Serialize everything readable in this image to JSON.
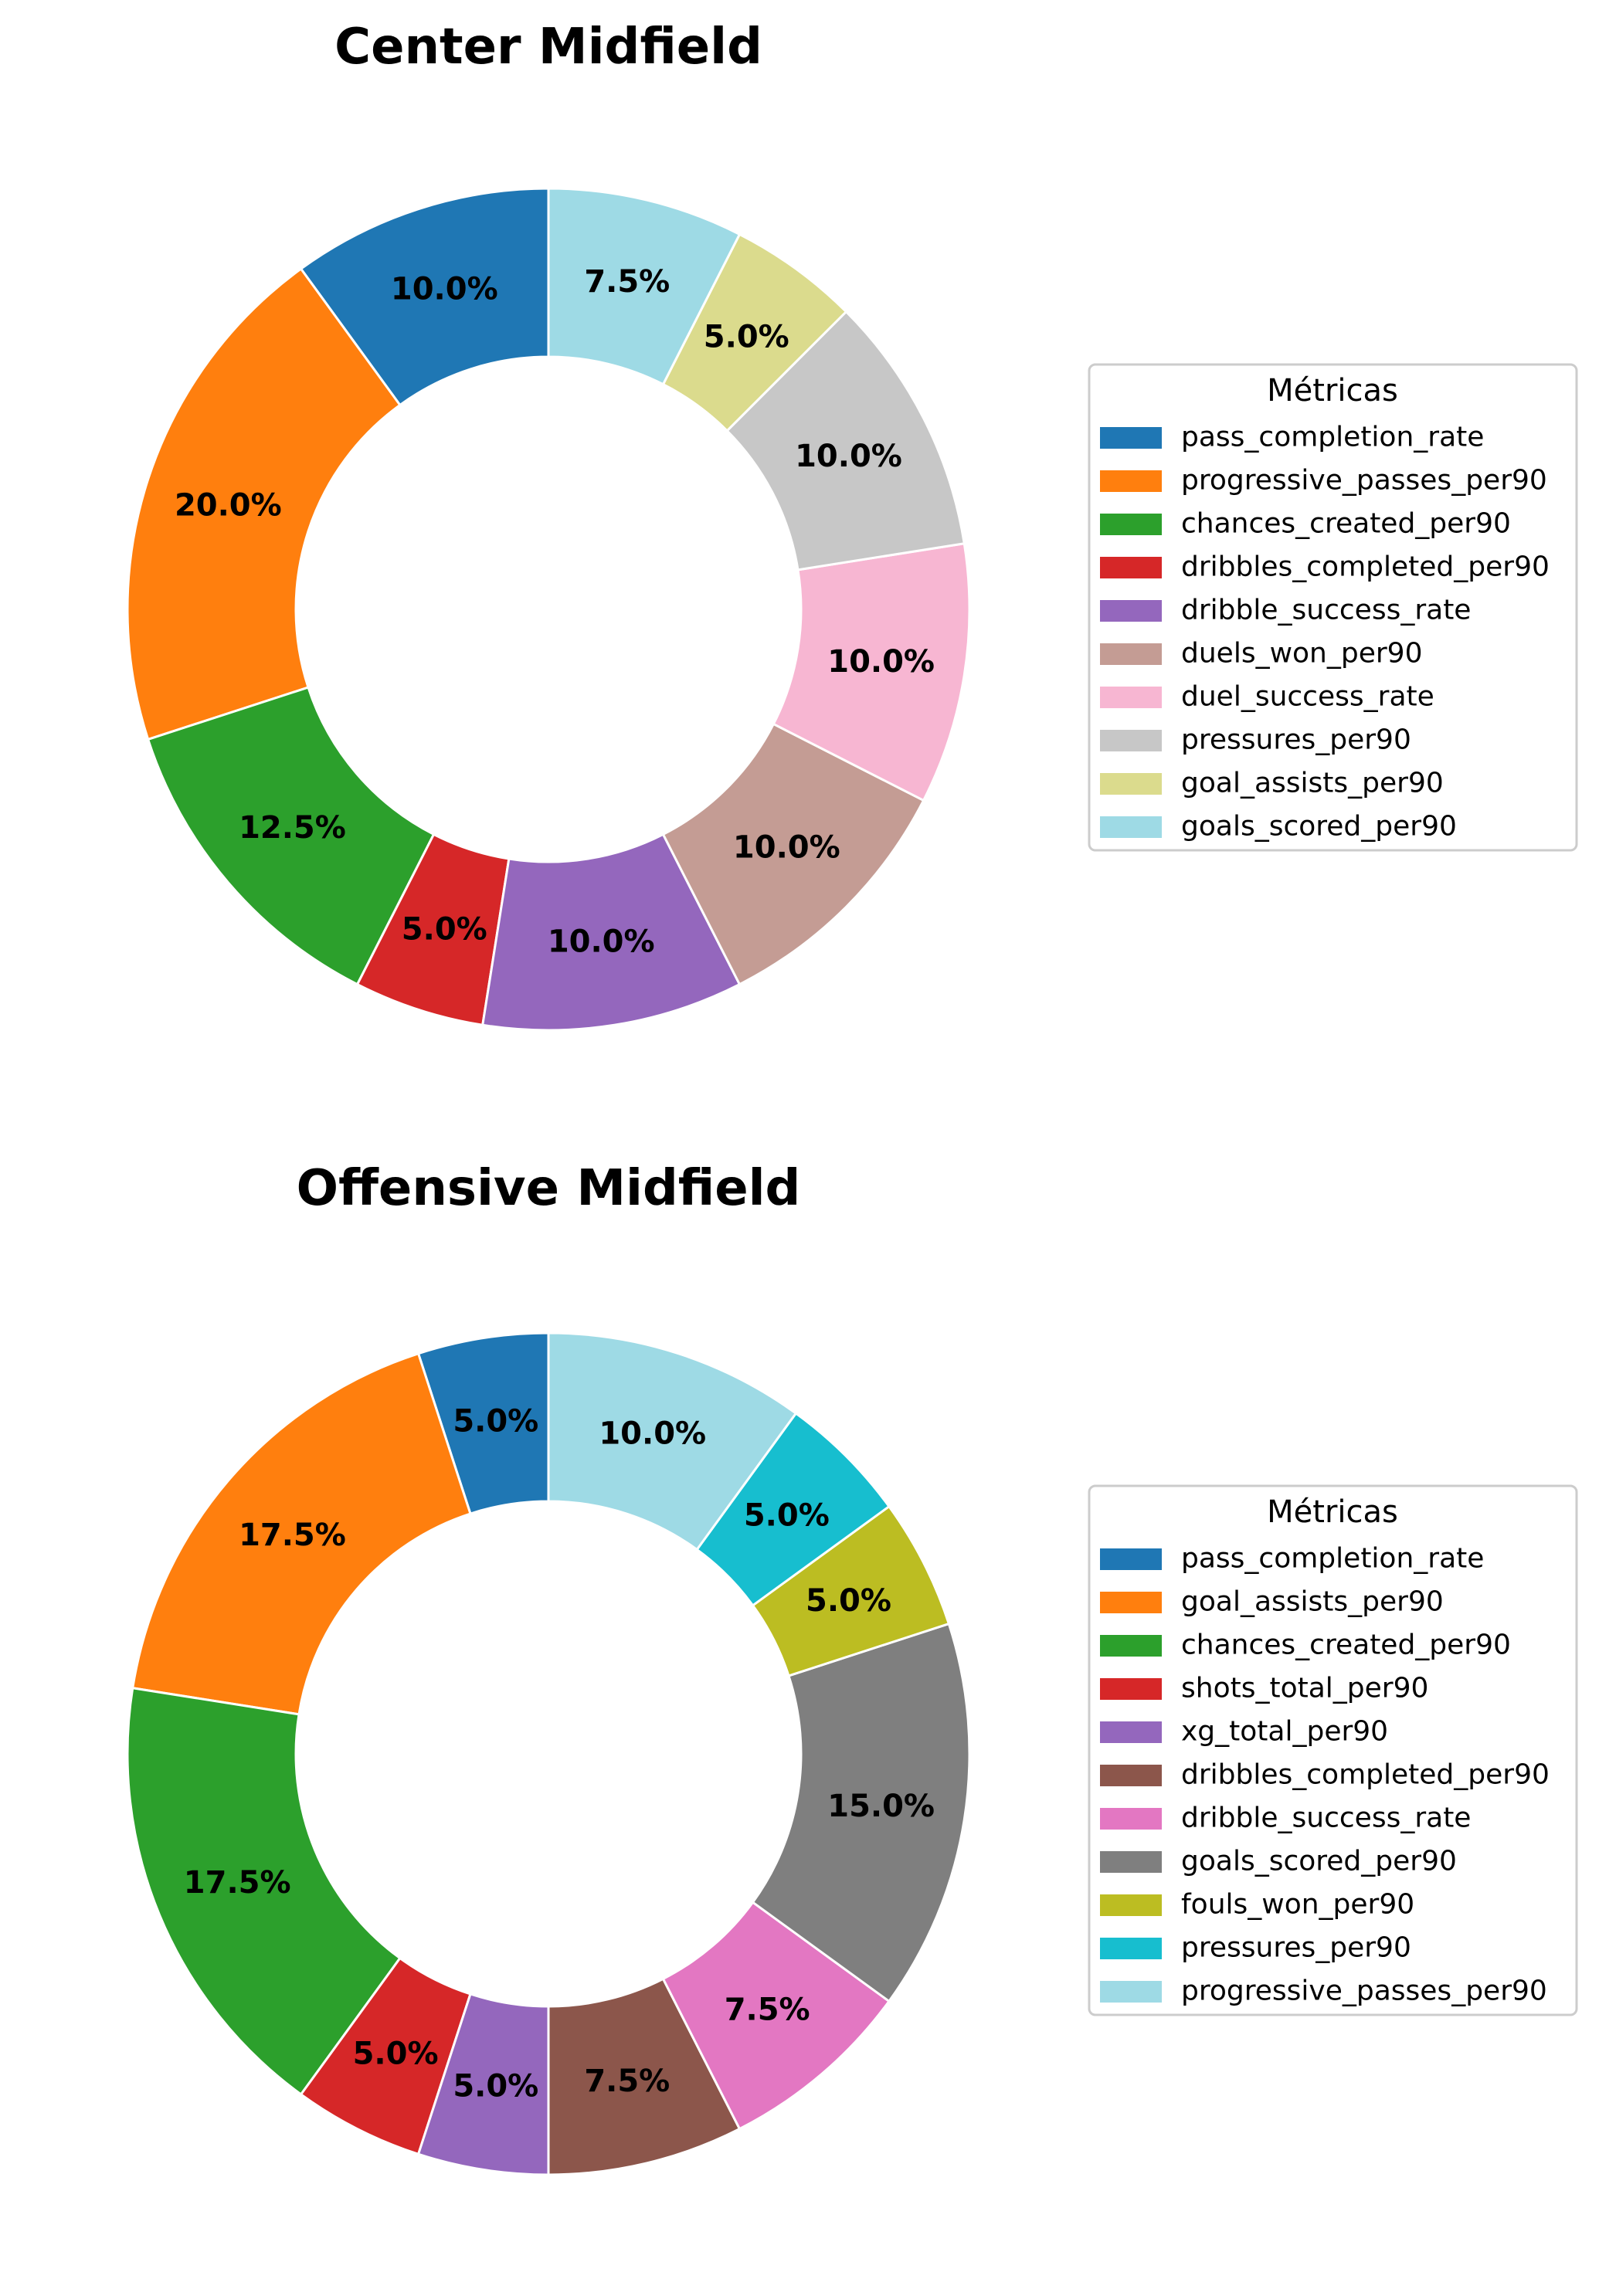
{
  "chart_data": [
    {
      "type": "pie",
      "title": "Center Midfield",
      "donut": true,
      "legend_title": "Métricas",
      "legend_placement": "right",
      "categories": [
        "pass_completion_rate",
        "progressive_passes_per90",
        "chances_created_per90",
        "dribbles_completed_per90",
        "dribble_success_rate",
        "duels_won_per90",
        "duel_success_rate",
        "pressures_per90",
        "goal_assists_per90",
        "goals_scored_per90"
      ],
      "values": [
        10.0,
        20.0,
        12.5,
        5.0,
        10.0,
        10.0,
        10.0,
        10.0,
        5.0,
        7.5
      ],
      "labels": [
        "10.0%",
        "20.0%",
        "12.5%",
        "5.0%",
        "10.0%",
        "10.0%",
        "10.0%",
        "10.0%",
        "5.0%",
        "7.5%"
      ],
      "colors": [
        "#1f77b4",
        "#ff7f0e",
        "#2ca02c",
        "#d62728",
        "#9467bd",
        "#c49c94",
        "#f7b6d2",
        "#c7c7c7",
        "#dbdb8d",
        "#9edae5"
      ]
    },
    {
      "type": "pie",
      "title": "Offensive Midfield",
      "donut": true,
      "legend_title": "Métricas",
      "legend_placement": "right",
      "categories": [
        "pass_completion_rate",
        "goal_assists_per90",
        "chances_created_per90",
        "shots_total_per90",
        "xg_total_per90",
        "dribbles_completed_per90",
        "dribble_success_rate",
        "goals_scored_per90",
        "fouls_won_per90",
        "pressures_per90",
        "progressive_passes_per90"
      ],
      "values": [
        5.0,
        17.5,
        17.5,
        5.0,
        5.0,
        7.5,
        7.5,
        15.0,
        5.0,
        5.0,
        10.0
      ],
      "labels": [
        "5.0%",
        "17.5%",
        "17.5%",
        "5.0%",
        "5.0%",
        "7.5%",
        "7.5%",
        "15.0%",
        "5.0%",
        "5.0%",
        "10.0%"
      ],
      "colors": [
        "#1f77b4",
        "#ff7f0e",
        "#2ca02c",
        "#d62728",
        "#9467bd",
        "#8c564b",
        "#e377c2",
        "#7f7f7f",
        "#bcbd22",
        "#17becf",
        "#9edae5"
      ]
    }
  ]
}
